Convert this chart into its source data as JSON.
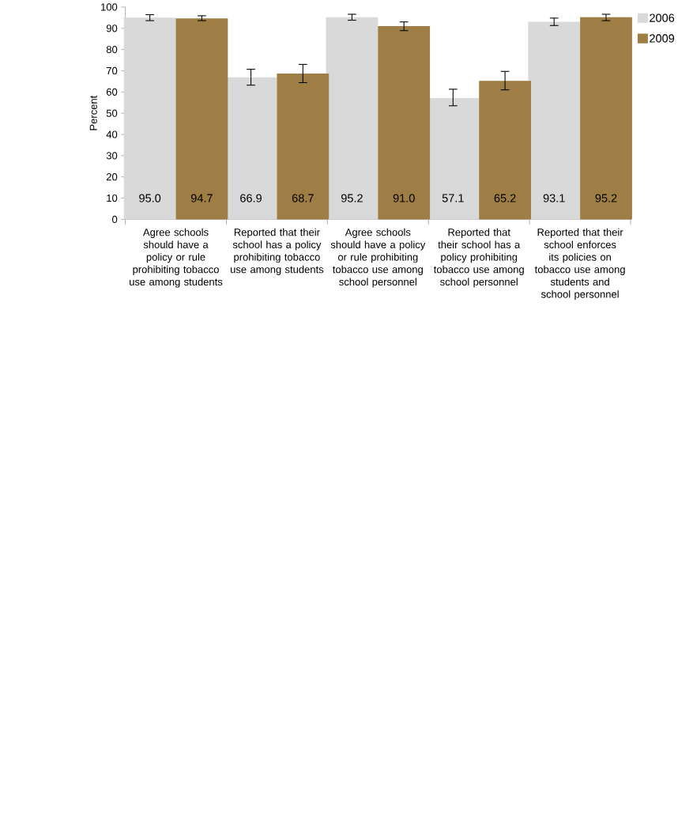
{
  "chart_data": {
    "type": "bar",
    "ylabel": "Percent",
    "categories": [
      "Agree schools should have a policy or rule prohibiting tobacco use among students",
      "Reported that their school has a policy prohibiting tobacco use among students",
      "Agree schools should have a policy or rule prohibiting tobacco use among school personnel",
      "Reported that their school has a policy prohibiting tobacco use among school personnel",
      "Reported that their school enforces its policies on tobacco use among students and school personnel"
    ],
    "series": [
      {
        "name": "2006",
        "color": "#d9d9d9",
        "values": [
          95.0,
          66.9,
          95.2,
          57.1,
          93.1
        ],
        "value_labels": [
          "95.0",
          "66.9",
          "95.2",
          "57.1",
          "93.1"
        ],
        "errors": [
          [
            93.6,
            96.4
          ],
          [
            63.2,
            70.7
          ],
          [
            93.8,
            96.6
          ],
          [
            53.5,
            61.3
          ],
          [
            91.3,
            94.8
          ]
        ]
      },
      {
        "name": "2009",
        "color": "#9e7e45",
        "values": [
          94.7,
          68.7,
          91.0,
          65.2,
          95.2
        ],
        "value_labels": [
          "94.7",
          "68.7",
          "91.0",
          "65.2",
          "95.2"
        ],
        "errors": [
          [
            93.6,
            95.9
          ],
          [
            64.4,
            73.0
          ],
          [
            88.9,
            93.0
          ],
          [
            61.0,
            69.7
          ],
          [
            93.6,
            96.6
          ]
        ]
      }
    ],
    "ylim": [
      0,
      100
    ],
    "yticks": [
      0,
      10,
      20,
      30,
      40,
      50,
      60,
      70,
      80,
      90,
      100
    ],
    "grid": false,
    "legend": "right"
  }
}
